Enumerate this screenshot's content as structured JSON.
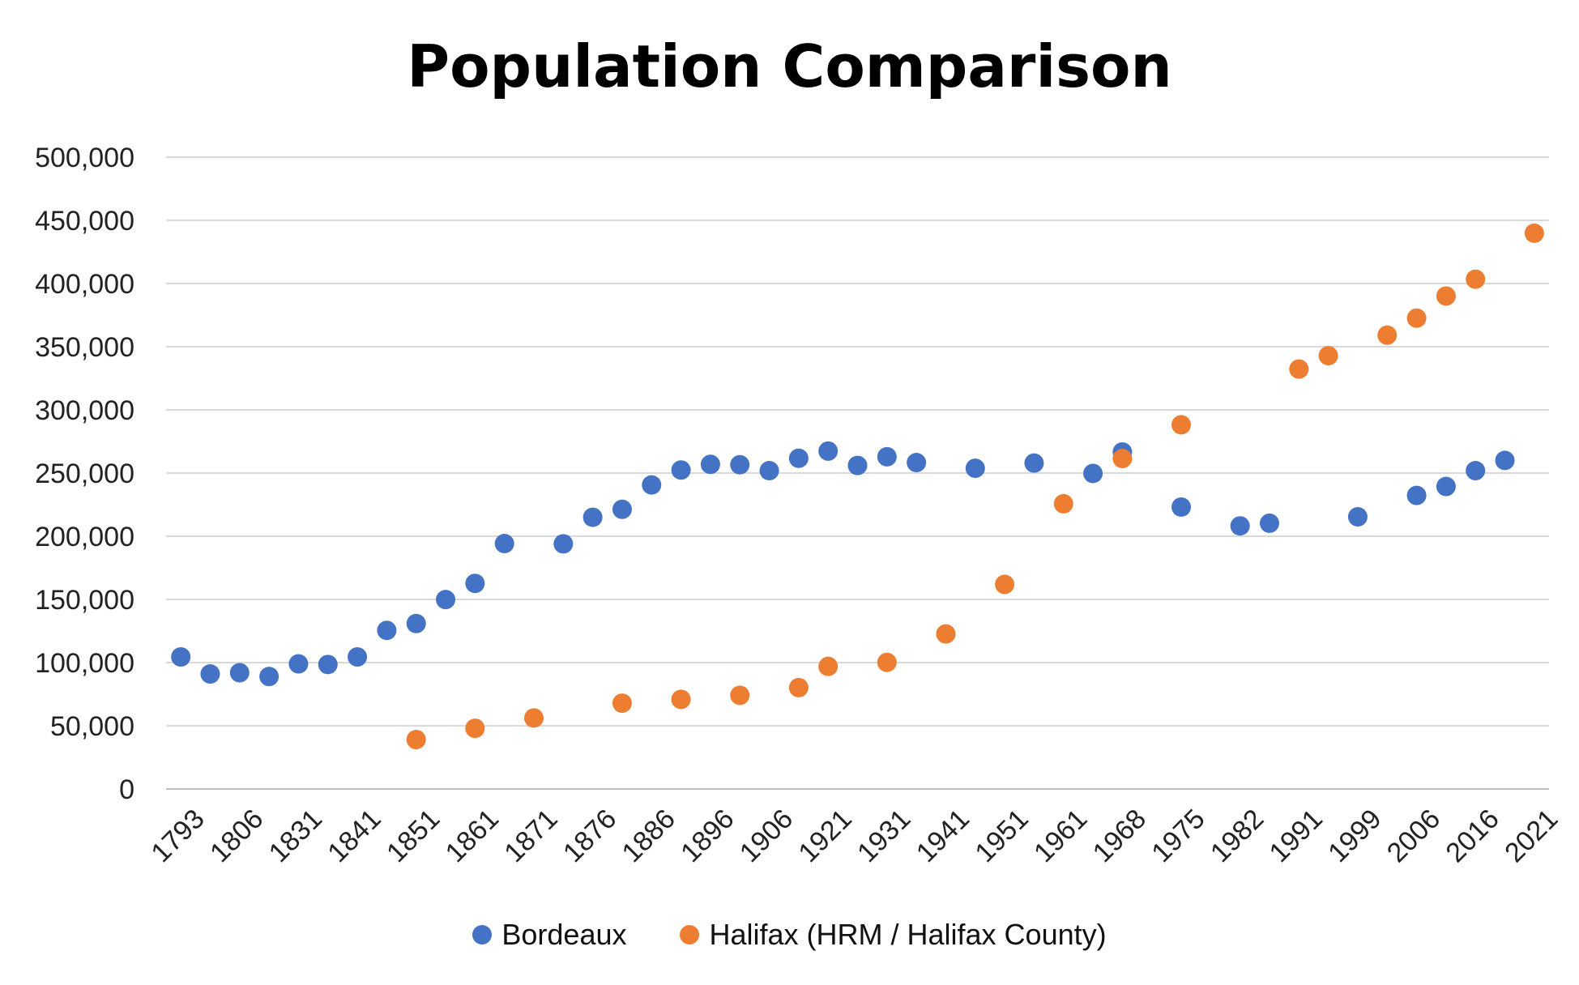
{
  "chart_data": {
    "type": "scatter",
    "title": "Population Comparison",
    "xlabel": "",
    "ylabel": "",
    "ylim": [
      0,
      500000
    ],
    "yticks": [
      "0",
      "50,000",
      "100,000",
      "150,000",
      "200,000",
      "250,000",
      "300,000",
      "350,000",
      "400,000",
      "450,000",
      "500,000"
    ],
    "ytick_values": [
      0,
      50000,
      100000,
      150000,
      200000,
      250000,
      300000,
      350000,
      400000,
      450000,
      500000
    ],
    "grid": true,
    "legend_position": "bottom",
    "categories": [
      "1793",
      "1800",
      "1806",
      "1821",
      "1831",
      "1836",
      "1841",
      "1846",
      "1851",
      "1856",
      "1861",
      "1866",
      "1871",
      "1872",
      "1876",
      "1881",
      "1886",
      "1891",
      "1896",
      "1901",
      "1906",
      "1911",
      "1921",
      "1926",
      "1931",
      "1936",
      "1941",
      "1946",
      "1951",
      "1954",
      "1961",
      "1962",
      "1968",
      "1971",
      "1975",
      "1976",
      "1982",
      "1986",
      "1991",
      "1996",
      "1999",
      "2001",
      "2006",
      "2011",
      "2016",
      "2019",
      "2021"
    ],
    "tick_labels": [
      "1793",
      "1806",
      "1831",
      "1841",
      "1851",
      "1861",
      "1871",
      "1876",
      "1886",
      "1896",
      "1906",
      "1921",
      "1931",
      "1941",
      "1951",
      "1961",
      "1968",
      "1975",
      "1982",
      "1991",
      "1999",
      "2006",
      "2016",
      "2021"
    ],
    "series": [
      {
        "name": "Bordeaux",
        "color": "#4472C4",
        "values": [
          104500,
          91000,
          92000,
          89000,
          99000,
          98500,
          104500,
          125500,
          130900,
          149900,
          162700,
          194200,
          null,
          194000,
          215000,
          221300,
          240600,
          252400,
          256900,
          256600,
          251900,
          261700,
          267400,
          256000,
          262900,
          258300,
          null,
          253800,
          null,
          257900,
          null,
          249700,
          266700,
          null,
          223100,
          null,
          208200,
          210300,
          null,
          null,
          215400,
          null,
          232300,
          239400,
          251900,
          260000,
          null
        ]
      },
      {
        "name": "Halifax (HRM / Halifax County)",
        "color": "#ED7D31",
        "values": [
          null,
          null,
          null,
          null,
          null,
          null,
          null,
          null,
          39100,
          null,
          48000,
          null,
          56200,
          null,
          null,
          67900,
          null,
          70900,
          null,
          74100,
          null,
          80200,
          97000,
          null,
          100200,
          null,
          122700,
          null,
          161900,
          null,
          225700,
          null,
          261500,
          null,
          288200,
          null,
          null,
          null,
          332300,
          342900,
          null,
          359100,
          372600,
          390100,
          403400,
          null,
          439800
        ]
      }
    ]
  }
}
